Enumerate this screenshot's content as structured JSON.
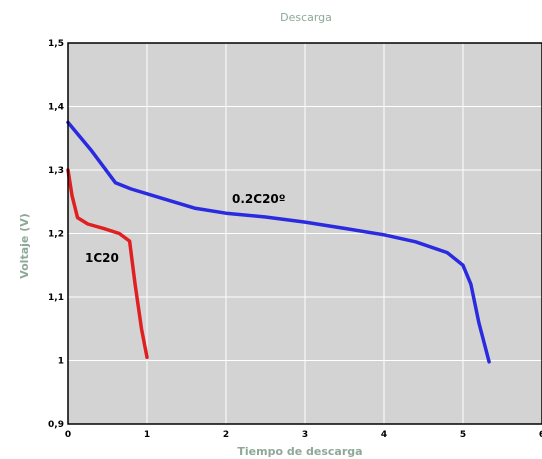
{
  "chart_data": {
    "type": "line",
    "title": "Descarga",
    "xlabel": "Tiempo de descarga",
    "ylabel": "Voltaje (V)",
    "xlim": [
      0,
      6
    ],
    "ylim": [
      0.9,
      1.5
    ],
    "x_ticks": [
      "0",
      "1",
      "2",
      "3",
      "4",
      "5",
      "6"
    ],
    "y_ticks": [
      "0,9",
      "1",
      "1,1",
      "1,2",
      "1,3",
      "1,4",
      "1,5"
    ],
    "grid": true,
    "background_color": "#d3d3d3",
    "grid_color": "#ffffff",
    "series": [
      {
        "name": "0.2C20º",
        "color": "#2a2ae0",
        "points": [
          [
            0,
            1.375
          ],
          [
            0.3,
            1.33
          ],
          [
            0.6,
            1.28
          ],
          [
            0.8,
            1.27
          ],
          [
            1.2,
            1.255
          ],
          [
            1.6,
            1.24
          ],
          [
            2,
            1.232
          ],
          [
            2.5,
            1.226
          ],
          [
            3,
            1.218
          ],
          [
            3.5,
            1.208
          ],
          [
            4,
            1.198
          ],
          [
            4.4,
            1.187
          ],
          [
            4.8,
            1.17
          ],
          [
            5,
            1.15
          ],
          [
            5.1,
            1.12
          ],
          [
            5.2,
            1.06
          ],
          [
            5.33,
            0.998
          ]
        ]
      },
      {
        "name": "1C20",
        "color": "#e02020",
        "points": [
          [
            0,
            1.3
          ],
          [
            0.05,
            1.26
          ],
          [
            0.12,
            1.225
          ],
          [
            0.25,
            1.215
          ],
          [
            0.45,
            1.208
          ],
          [
            0.65,
            1.2
          ],
          [
            0.78,
            1.188
          ],
          [
            0.85,
            1.12
          ],
          [
            0.93,
            1.05
          ],
          [
            1.0,
            1.005
          ]
        ]
      }
    ]
  }
}
